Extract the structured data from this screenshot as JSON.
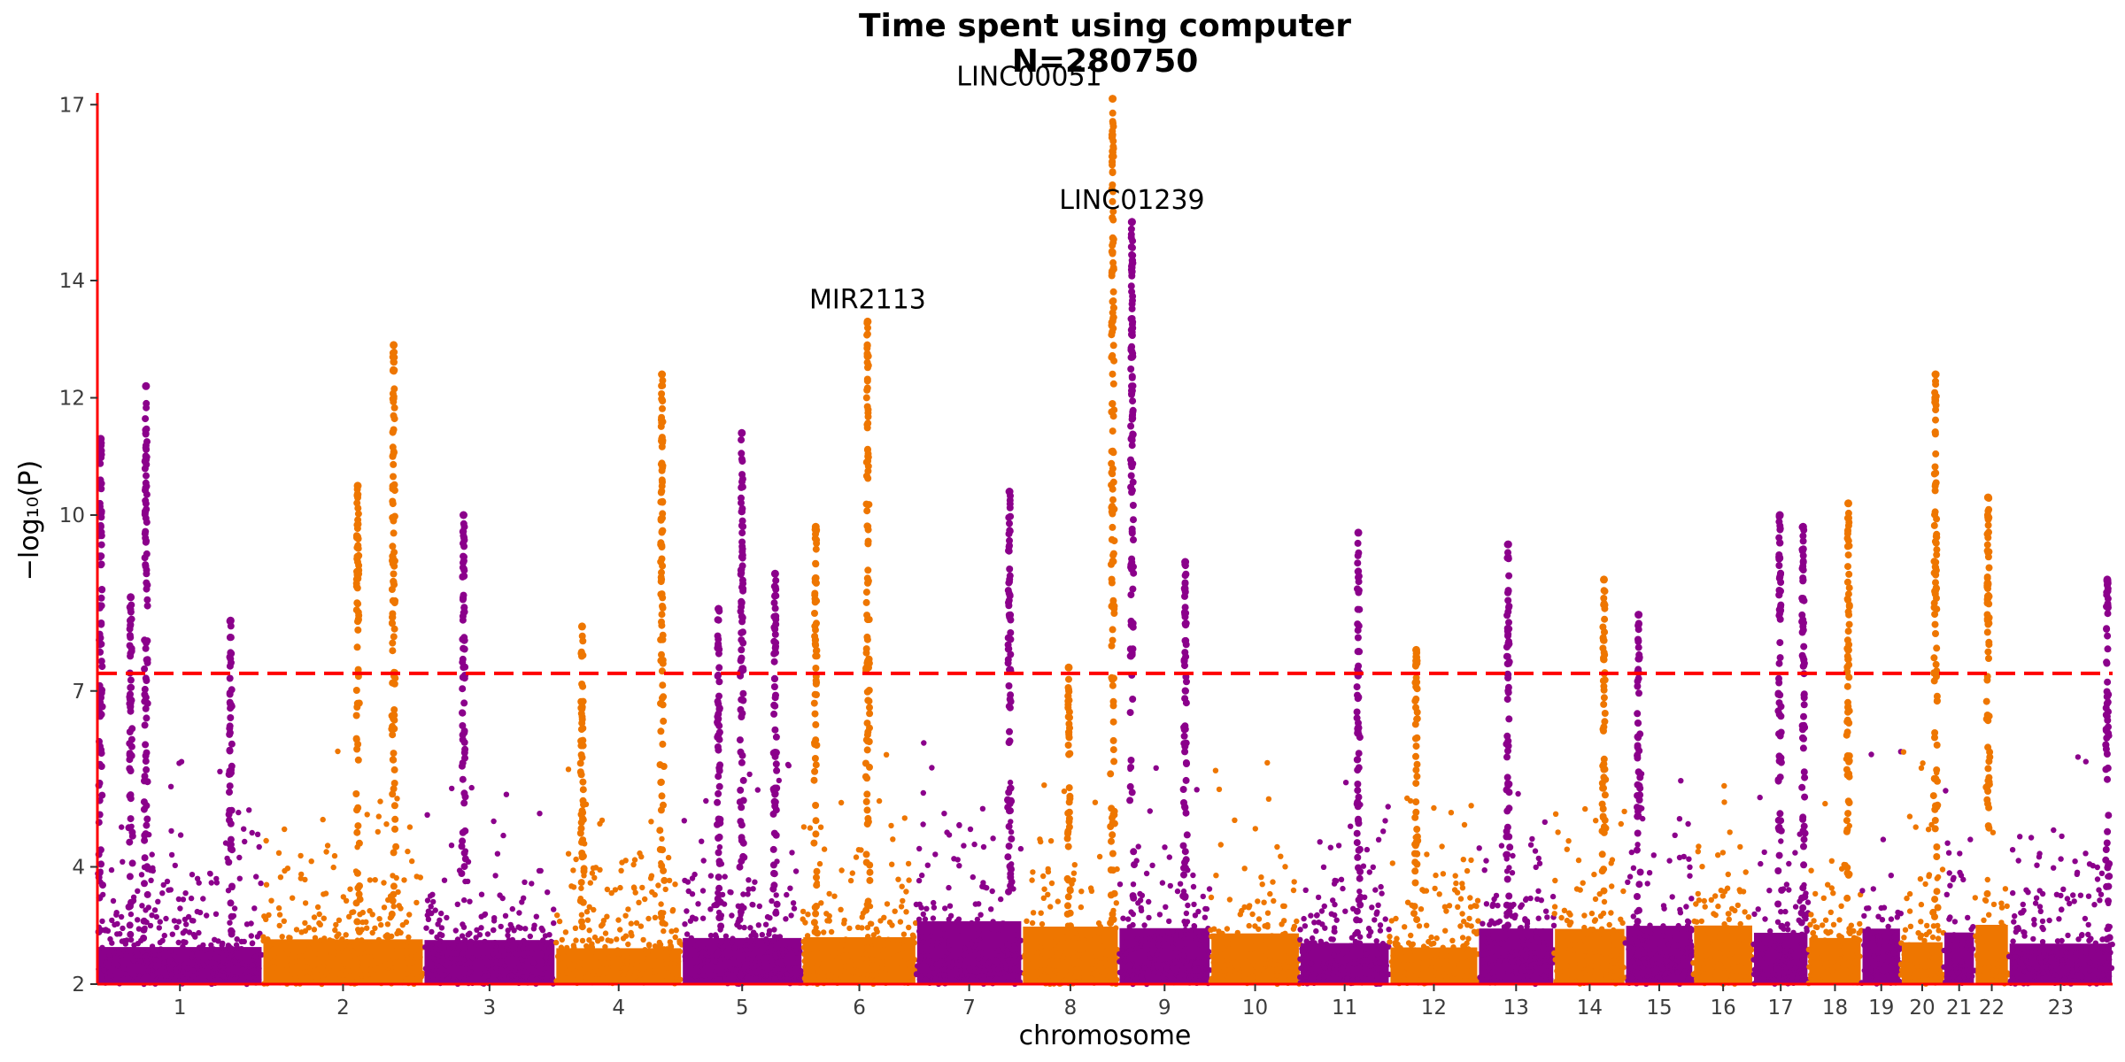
{
  "chart_data": {
    "type": "scatter",
    "subtype": "manhattan",
    "title": "Time spent using computer",
    "subtitle": "N=280750",
    "xlabel": "chromosome",
    "ylabel": "−log₁₀(P)",
    "ylim": [
      2,
      17.2
    ],
    "yticks": [
      2,
      4,
      7,
      10,
      12,
      14,
      17
    ],
    "significance_threshold": 7.3,
    "colors": {
      "odd": "#8B008B",
      "even": "#EE7600",
      "threshold": "#FF0000",
      "axis": "#FF0000"
    },
    "grid": false,
    "legend": "none",
    "chromosomes": [
      {
        "label": "1",
        "len": 248
      },
      {
        "label": "2",
        "len": 242
      },
      {
        "label": "3",
        "len": 198
      },
      {
        "label": "4",
        "len": 190
      },
      {
        "label": "5",
        "len": 181
      },
      {
        "label": "6",
        "len": 171
      },
      {
        "label": "7",
        "len": 159
      },
      {
        "label": "8",
        "len": 145
      },
      {
        "label": "9",
        "len": 138
      },
      {
        "label": "10",
        "len": 134
      },
      {
        "label": "11",
        "len": 135
      },
      {
        "label": "12",
        "len": 133
      },
      {
        "label": "13",
        "len": 114
      },
      {
        "label": "14",
        "len": 107
      },
      {
        "label": "15",
        "len": 102
      },
      {
        "label": "16",
        "len": 90
      },
      {
        "label": "17",
        "len": 83
      },
      {
        "label": "18",
        "len": 80
      },
      {
        "label": "19",
        "len": 59
      },
      {
        "label": "20",
        "len": 64
      },
      {
        "label": "21",
        "len": 47
      },
      {
        "label": "22",
        "len": 51
      },
      {
        "label": "23",
        "len": 156
      }
    ],
    "peaks": [
      {
        "chr": "1",
        "pos": 5,
        "max": 11.3
      },
      {
        "chr": "1",
        "pos": 50,
        "max": 8.6
      },
      {
        "chr": "1",
        "pos": 73,
        "max": 12.2
      },
      {
        "chr": "1",
        "pos": 200,
        "max": 8.2
      },
      {
        "chr": "2",
        "pos": 143,
        "max": 10.5
      },
      {
        "chr": "2",
        "pos": 197,
        "max": 12.9
      },
      {
        "chr": "3",
        "pos": 60,
        "max": 10.0
      },
      {
        "chr": "4",
        "pos": 40,
        "max": 8.1
      },
      {
        "chr": "4",
        "pos": 160,
        "max": 12.4
      },
      {
        "chr": "5",
        "pos": 55,
        "max": 8.4
      },
      {
        "chr": "5",
        "pos": 90,
        "max": 11.4
      },
      {
        "chr": "5",
        "pos": 140,
        "max": 9.0
      },
      {
        "chr": "6",
        "pos": 20,
        "max": 9.8
      },
      {
        "chr": "6",
        "pos": 98,
        "max": 13.3
      },
      {
        "chr": "7",
        "pos": 140,
        "max": 10.4
      },
      {
        "chr": "8",
        "pos": 70,
        "max": 7.4
      },
      {
        "chr": "8",
        "pos": 136,
        "max": 17.1
      },
      {
        "chr": "9",
        "pos": 20,
        "max": 15.0
      },
      {
        "chr": "9",
        "pos": 100,
        "max": 9.2
      },
      {
        "chr": "11",
        "pos": 88,
        "max": 9.7
      },
      {
        "chr": "12",
        "pos": 40,
        "max": 7.7
      },
      {
        "chr": "13",
        "pos": 45,
        "max": 9.5
      },
      {
        "chr": "14",
        "pos": 75,
        "max": 8.9
      },
      {
        "chr": "15",
        "pos": 20,
        "max": 8.3
      },
      {
        "chr": "17",
        "pos": 40,
        "max": 10.0
      },
      {
        "chr": "17",
        "pos": 75,
        "max": 9.8
      },
      {
        "chr": "18",
        "pos": 60,
        "max": 10.2
      },
      {
        "chr": "20",
        "pos": 52,
        "max": 12.4
      },
      {
        "chr": "22",
        "pos": 20,
        "max": 10.3
      },
      {
        "chr": "23",
        "pos": 148,
        "max": 8.9
      }
    ],
    "annotations": [
      {
        "text": "LINC00051",
        "chr": "8",
        "pos": 136,
        "y": 17.1
      },
      {
        "text": "LINC01239",
        "chr": "9",
        "pos": 20,
        "y": 15.0
      },
      {
        "text": "MIR2113",
        "chr": "6",
        "pos": 98,
        "y": 13.3
      }
    ]
  }
}
